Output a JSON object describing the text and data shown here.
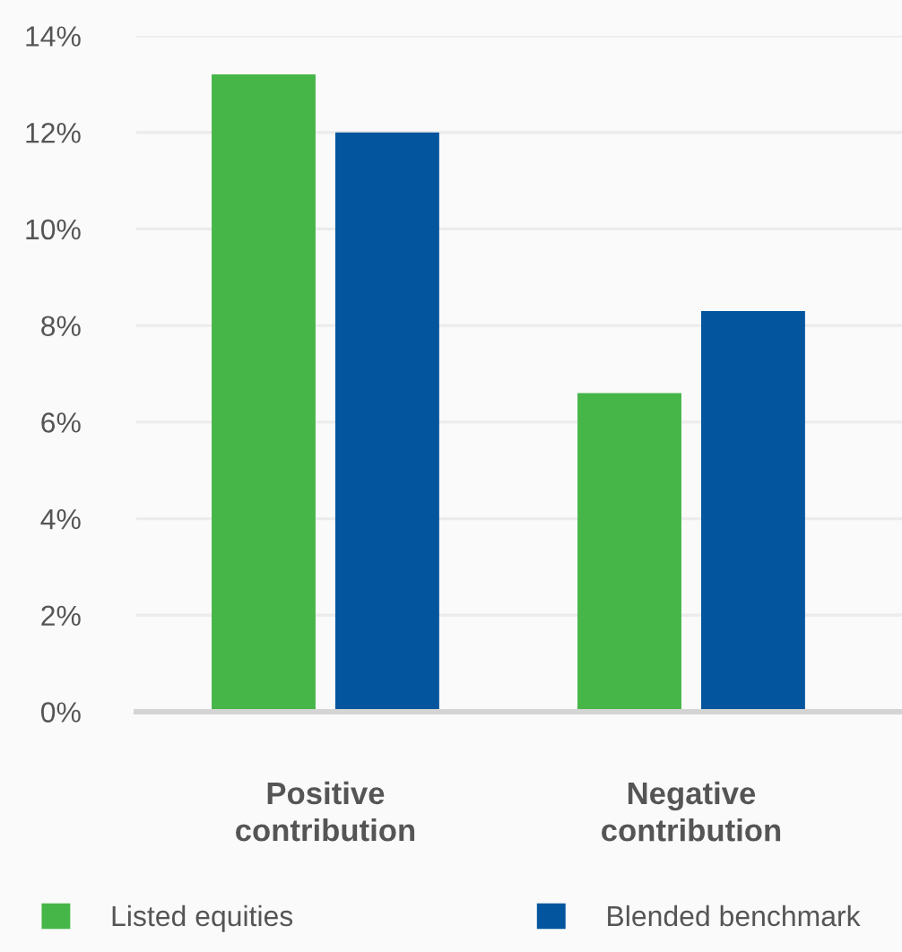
{
  "chart_data": {
    "type": "bar",
    "categories": [
      "Positive\ncontribution",
      "Negative\ncontribution"
    ],
    "series": [
      {
        "name": "Listed equities",
        "color": "#47b649",
        "values": [
          13.2,
          6.6
        ]
      },
      {
        "name": "Blended benchmark",
        "color": "#03559e",
        "values": [
          12.0,
          8.3
        ]
      }
    ],
    "ylim": [
      0,
      14
    ],
    "yticks": [
      {
        "value": 0,
        "label": "0%"
      },
      {
        "value": 2,
        "label": "2%"
      },
      {
        "value": 4,
        "label": "4%"
      },
      {
        "value": 6,
        "label": "6%"
      },
      {
        "value": 8,
        "label": "8%"
      },
      {
        "value": 10,
        "label": "10%"
      },
      {
        "value": 12,
        "label": "12%"
      },
      {
        "value": 14,
        "label": "14%"
      }
    ],
    "grid": "y",
    "legend": "bottom"
  }
}
